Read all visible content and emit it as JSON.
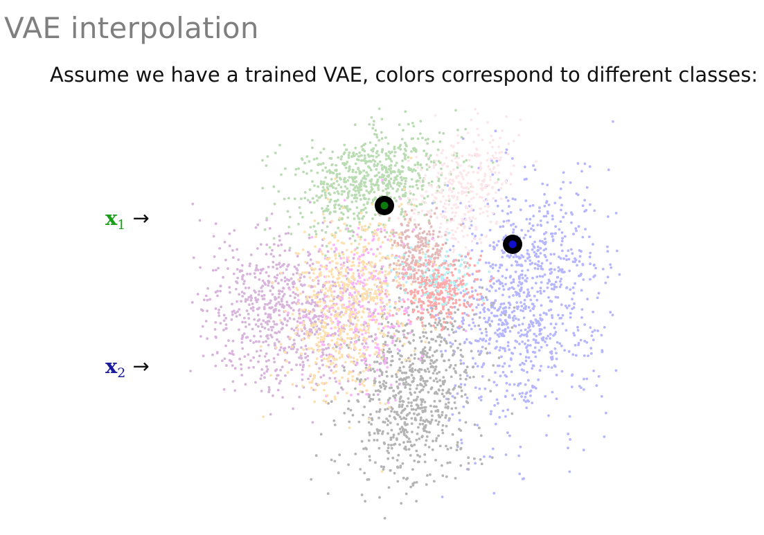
{
  "slide": {
    "title": "VAE interpolation",
    "subtitle": "Assume we have a trained VAE, colors correspond to different classes:"
  },
  "labels": {
    "x1": {
      "symbol": "x",
      "subscript": "1",
      "arrow": "→",
      "color": "#1a9e1a"
    },
    "x2": {
      "symbol": "x",
      "subscript": "2",
      "arrow": "→",
      "color": "#1a1a9c"
    }
  },
  "latent_space": {
    "clusters": [
      {
        "class_color": "green",
        "fill": "#b9dcb3",
        "n": 700
      },
      {
        "class_color": "blue",
        "fill": "#b6b6ff",
        "n": 950
      },
      {
        "class_color": "gray",
        "fill": "#b4b4b4",
        "n": 800
      },
      {
        "class_color": "purple",
        "fill": "#d8b4dc",
        "n": 800
      },
      {
        "class_color": "pink",
        "fill": "#fde6ea",
        "n": 350
      },
      {
        "class_color": "red",
        "fill": "#ffaaaa",
        "n": 350
      },
      {
        "class_color": "brown",
        "fill": "#e2baba",
        "n": 220
      },
      {
        "class_color": "magenta",
        "fill": "#fbb4fb",
        "n": 280
      },
      {
        "class_color": "cyan",
        "fill": "#b4f4f6",
        "n": 90
      },
      {
        "class_color": "orange",
        "fill": "#fde0b0",
        "n": 650
      }
    ],
    "markers": [
      {
        "name": "x1",
        "inner": "#0d7a0d"
      },
      {
        "name": "x2",
        "inner": "#1010cc"
      }
    ]
  }
}
